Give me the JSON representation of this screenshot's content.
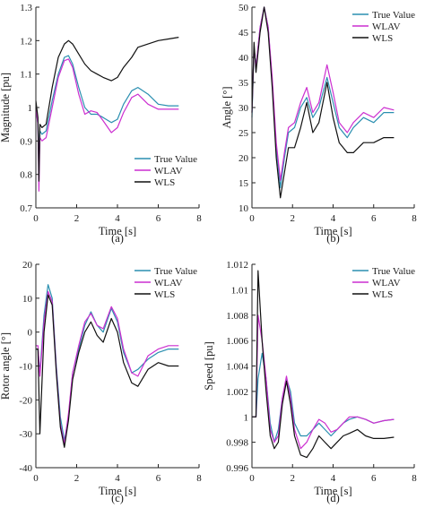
{
  "chart_data": [
    {
      "type": "line",
      "caption": "(a)",
      "xlabel": "Time [s]",
      "ylabel": "Magnitude [pu]",
      "xlim": [
        0,
        8
      ],
      "ylim": [
        0.7,
        1.3
      ],
      "xticks": [
        0,
        2,
        4,
        6,
        8
      ],
      "yticks": [
        0.7,
        0.8,
        0.9,
        1,
        1.1,
        1.2,
        1.3
      ],
      "xtick_labels": [
        "0",
        "2",
        "4",
        "6",
        "8"
      ],
      "ytick_labels": [
        "0.7",
        "0.8",
        "0.9",
        "1",
        "1.1",
        "1.2",
        "1.3"
      ],
      "grid": false,
      "legend_position": "lower-right",
      "series": [
        {
          "name": "True Value",
          "color": "#2a8fb0",
          "x": [
            0,
            0.1,
            0.15,
            0.2,
            0.3,
            0.5,
            0.8,
            1.1,
            1.4,
            1.6,
            1.8,
            2.1,
            2.4,
            2.7,
            3.0,
            3.3,
            3.7,
            4.0,
            4.3,
            4.7,
            5.0,
            5.5,
            6.0,
            6.5,
            7.0
          ],
          "values": [
            1.0,
            0.95,
            0.8,
            0.93,
            0.92,
            0.93,
            1.02,
            1.1,
            1.15,
            1.155,
            1.13,
            1.06,
            1.0,
            0.98,
            0.98,
            0.97,
            0.955,
            0.965,
            1.01,
            1.05,
            1.06,
            1.04,
            1.01,
            1.005,
            1.005
          ]
        },
        {
          "name": "WLAV",
          "color": "#cc2fd0",
          "x": [
            0,
            0.1,
            0.15,
            0.2,
            0.3,
            0.5,
            0.8,
            1.1,
            1.4,
            1.6,
            1.8,
            2.1,
            2.4,
            2.7,
            3.0,
            3.3,
            3.7,
            4.0,
            4.3,
            4.7,
            5.0,
            5.5,
            6.0,
            6.5,
            7.0
          ],
          "values": [
            1.0,
            0.95,
            0.75,
            0.91,
            0.9,
            0.91,
            1.0,
            1.09,
            1.14,
            1.145,
            1.12,
            1.04,
            0.98,
            0.99,
            0.985,
            0.96,
            0.925,
            0.94,
            0.985,
            1.03,
            1.04,
            1.01,
            0.995,
            0.995,
            0.995
          ]
        },
        {
          "name": "WLS",
          "color": "#111111",
          "x": [
            0,
            0.1,
            0.15,
            0.2,
            0.3,
            0.5,
            0.8,
            1.1,
            1.4,
            1.6,
            1.8,
            2.1,
            2.4,
            2.7,
            3.0,
            3.3,
            3.7,
            4.0,
            4.3,
            4.7,
            5.0,
            5.5,
            6.0,
            6.5,
            7.0
          ],
          "values": [
            1.02,
            0.97,
            0.78,
            0.95,
            0.94,
            0.95,
            1.06,
            1.15,
            1.19,
            1.2,
            1.19,
            1.16,
            1.13,
            1.11,
            1.1,
            1.09,
            1.08,
            1.09,
            1.12,
            1.15,
            1.18,
            1.19,
            1.2,
            1.205,
            1.21
          ]
        }
      ]
    },
    {
      "type": "line",
      "caption": "(b)",
      "xlabel": "Time [s]",
      "ylabel": "Angle [°]",
      "xlim": [
        0,
        8
      ],
      "ylim": [
        10,
        50
      ],
      "xticks": [
        0,
        2,
        4,
        6,
        8
      ],
      "yticks": [
        10,
        15,
        20,
        25,
        30,
        35,
        40,
        45,
        50
      ],
      "xtick_labels": [
        "0",
        "2",
        "4",
        "6",
        "8"
      ],
      "ytick_labels": [
        "10",
        "15",
        "20",
        "25",
        "30",
        "35",
        "40",
        "45",
        "50"
      ],
      "grid": false,
      "legend_position": "top-right",
      "series": [
        {
          "name": "True Value",
          "color": "#2a8fb0",
          "x": [
            0,
            0.1,
            0.2,
            0.4,
            0.6,
            0.8,
            1.0,
            1.2,
            1.4,
            1.6,
            1.8,
            2.1,
            2.4,
            2.7,
            3.0,
            3.3,
            3.7,
            4.0,
            4.3,
            4.7,
            5.0,
            5.5,
            6.0,
            6.5,
            7.0
          ],
          "values": [
            28,
            42,
            38,
            46,
            50,
            46,
            35,
            22,
            14,
            20,
            25,
            26,
            30,
            32,
            28,
            30,
            36,
            31,
            26,
            24,
            26,
            28,
            27,
            29,
            29
          ]
        },
        {
          "name": "WLAV",
          "color": "#cc2fd0",
          "x": [
            0,
            0.1,
            0.2,
            0.4,
            0.6,
            0.8,
            1.0,
            1.2,
            1.4,
            1.6,
            1.8,
            2.1,
            2.4,
            2.7,
            3.0,
            3.3,
            3.7,
            4.0,
            4.3,
            4.7,
            5.0,
            5.5,
            6.0,
            6.5,
            7.0
          ],
          "values": [
            29,
            42,
            38,
            46,
            50,
            46,
            36,
            23,
            15.5,
            21,
            26,
            27,
            31,
            34,
            29,
            31,
            38.5,
            33,
            27,
            25,
            27,
            29,
            28,
            30,
            29.5
          ]
        },
        {
          "name": "WLS",
          "color": "#111111",
          "x": [
            0,
            0.1,
            0.2,
            0.4,
            0.6,
            0.8,
            1.0,
            1.2,
            1.4,
            1.6,
            1.8,
            2.1,
            2.4,
            2.7,
            3.0,
            3.3,
            3.7,
            4.0,
            4.3,
            4.7,
            5.0,
            5.5,
            6.0,
            6.5,
            7.0
          ],
          "values": [
            29,
            43,
            37,
            45,
            50,
            45,
            34,
            20,
            12,
            17,
            22,
            22,
            26,
            31,
            25,
            27,
            35,
            28,
            23,
            21,
            21,
            23,
            23,
            24,
            24
          ]
        }
      ]
    },
    {
      "type": "line",
      "caption": "(c)",
      "xlabel": "Time [s]",
      "ylabel": "Rotor angle [°]",
      "xlim": [
        0,
        8
      ],
      "ylim": [
        -40,
        20
      ],
      "xticks": [
        0,
        2,
        4,
        6,
        8
      ],
      "yticks": [
        -40,
        -30,
        -20,
        -10,
        0,
        10,
        20
      ],
      "xtick_labels": [
        "0",
        "2",
        "4",
        "6",
        "8"
      ],
      "ytick_labels": [
        "-40",
        "-30",
        "-20",
        "-10",
        "0",
        "10",
        "20"
      ],
      "grid": false,
      "legend_position": "top-right",
      "series": [
        {
          "name": "True Value",
          "color": "#2a8fb0",
          "x": [
            0,
            0.1,
            0.2,
            0.4,
            0.6,
            0.8,
            1.0,
            1.2,
            1.4,
            1.6,
            1.8,
            2.1,
            2.4,
            2.7,
            3.0,
            3.3,
            3.7,
            4.0,
            4.3,
            4.7,
            5.0,
            5.5,
            6.0,
            6.5,
            7.0
          ],
          "values": [
            -5,
            -5,
            -12,
            5,
            14,
            10,
            -10,
            -25,
            -32,
            -25,
            -12,
            -5,
            2,
            6,
            2,
            0,
            7,
            3,
            -6,
            -12,
            -11,
            -8,
            -6,
            -5,
            -5
          ]
        },
        {
          "name": "WLAV",
          "color": "#cc2fd0",
          "x": [
            0,
            0.1,
            0.2,
            0.4,
            0.6,
            0.8,
            1.0,
            1.2,
            1.4,
            1.6,
            1.8,
            2.1,
            2.4,
            2.7,
            3.0,
            3.3,
            3.7,
            4.0,
            4.3,
            4.7,
            5.0,
            5.5,
            6.0,
            6.5,
            7.0
          ],
          "values": [
            -4,
            -4,
            -13,
            3,
            12,
            9,
            -11,
            -27,
            -33,
            -24,
            -12,
            -4,
            3,
            5.5,
            2,
            1,
            7.5,
            4,
            -5,
            -12,
            -13,
            -7,
            -5,
            -4,
            -4
          ]
        },
        {
          "name": "WLS",
          "color": "#111111",
          "x": [
            0,
            0.1,
            0.2,
            0.4,
            0.6,
            0.8,
            1.0,
            1.2,
            1.4,
            1.6,
            1.8,
            2.1,
            2.4,
            2.7,
            3.0,
            3.3,
            3.7,
            4.0,
            4.3,
            4.7,
            5.0,
            5.5,
            6.0,
            6.5,
            7.0
          ],
          "values": [
            -5,
            -5,
            -30,
            0,
            11,
            8,
            -12,
            -28,
            -34,
            -26,
            -14,
            -6,
            0,
            3,
            -1,
            -3,
            4,
            0,
            -9,
            -15,
            -16,
            -11,
            -9,
            -10,
            -10
          ]
        }
      ]
    },
    {
      "type": "line",
      "caption": "(d)",
      "xlabel": "Time [s]",
      "ylabel": "Speed [pu]",
      "xlim": [
        0,
        8
      ],
      "ylim": [
        0.996,
        1.012
      ],
      "xticks": [
        0,
        2,
        4,
        6,
        8
      ],
      "yticks": [
        0.996,
        0.998,
        1,
        1.002,
        1.004,
        1.006,
        1.008,
        1.01,
        1.012
      ],
      "xtick_labels": [
        "0",
        "2",
        "4",
        "6",
        "8"
      ],
      "ytick_labels": [
        "0.996",
        "0.998",
        "1",
        "1.002",
        "1.004",
        "1.006",
        "1.008",
        "1.01",
        "1.012"
      ],
      "grid": false,
      "legend_position": "top-right",
      "series": [
        {
          "name": "True Value",
          "color": "#2a8fb0",
          "x": [
            0,
            0.2,
            0.3,
            0.5,
            0.7,
            0.9,
            1.1,
            1.3,
            1.5,
            1.7,
            1.9,
            2.1,
            2.4,
            2.7,
            3.0,
            3.3,
            3.6,
            3.9,
            4.2,
            4.5,
            4.8,
            5.2,
            5.6,
            6.0,
            6.5,
            7.0
          ],
          "values": [
            1.0,
            1.0,
            1.003,
            1.005,
            1.003,
            0.9995,
            0.998,
            0.999,
            1.0015,
            1.003,
            1.002,
            0.9995,
            0.9985,
            0.9985,
            0.999,
            0.9995,
            0.999,
            0.9985,
            0.999,
            0.9995,
            0.9998,
            1.0,
            0.9998,
            0.9995,
            0.9997,
            0.9998
          ]
        },
        {
          "name": "WLAV",
          "color": "#cc2fd0",
          "x": [
            0,
            0.2,
            0.3,
            0.5,
            0.7,
            0.9,
            1.1,
            1.3,
            1.5,
            1.7,
            1.9,
            2.1,
            2.4,
            2.7,
            3.0,
            3.3,
            3.6,
            3.9,
            4.2,
            4.5,
            4.8,
            5.2,
            5.6,
            6.0,
            6.5,
            7.0
          ],
          "values": [
            1.0,
            1.0,
            1.008,
            1.006,
            1.003,
            0.999,
            0.998,
            0.9985,
            1.0015,
            1.0032,
            1.0015,
            0.999,
            0.9975,
            0.998,
            0.999,
            0.9998,
            0.9995,
            0.9988,
            0.999,
            0.9995,
            1.0,
            1.0,
            0.9998,
            0.9995,
            0.9997,
            0.9998
          ]
        },
        {
          "name": "WLS",
          "color": "#111111",
          "x": [
            0,
            0.2,
            0.3,
            0.5,
            0.7,
            0.9,
            1.1,
            1.3,
            1.5,
            1.7,
            1.9,
            2.1,
            2.4,
            2.7,
            3.0,
            3.3,
            3.6,
            3.9,
            4.2,
            4.5,
            4.8,
            5.2,
            5.6,
            6.0,
            6.5,
            7.0
          ],
          "values": [
            1.0,
            1.0,
            1.0115,
            1.006,
            1.002,
            0.9985,
            0.9975,
            0.998,
            1.001,
            1.0028,
            1.001,
            0.9985,
            0.997,
            0.9968,
            0.9975,
            0.9985,
            0.998,
            0.9975,
            0.998,
            0.9985,
            0.9987,
            0.999,
            0.9985,
            0.9983,
            0.9983,
            0.9984
          ]
        }
      ]
    }
  ]
}
